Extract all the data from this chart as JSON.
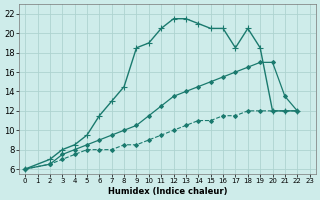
{
  "xlabel": "Humidex (Indice chaleur)",
  "bg_color": "#ceecea",
  "grid_color": "#aed4d0",
  "line_color": "#1a7a6e",
  "xlim": [
    -0.5,
    23.5
  ],
  "ylim": [
    5.5,
    23.0
  ],
  "yticks": [
    6,
    8,
    10,
    12,
    14,
    16,
    18,
    20,
    22
  ],
  "xticks": [
    0,
    1,
    2,
    3,
    4,
    5,
    6,
    7,
    8,
    9,
    10,
    11,
    12,
    13,
    14,
    15,
    16,
    17,
    18,
    19,
    20,
    21,
    22,
    23
  ],
  "series": [
    {
      "x": [
        0,
        2,
        3,
        4,
        5,
        6,
        7,
        8,
        9,
        10,
        11,
        12,
        13,
        14,
        15,
        16,
        17,
        18,
        19,
        20,
        21,
        22
      ],
      "y": [
        6,
        6.5,
        7.0,
        7.5,
        8.0,
        8.0,
        8.0,
        8.5,
        8.5,
        9.0,
        9.5,
        10.0,
        10.5,
        11.0,
        11.0,
        11.5,
        11.5,
        12.0,
        12.0,
        12.0,
        12.0,
        12.0
      ],
      "style": "--",
      "marker": "D",
      "markersize": 2.0,
      "linewidth": 0.8
    },
    {
      "x": [
        0,
        2,
        3,
        4,
        5,
        6,
        7,
        8,
        9,
        10,
        11,
        12,
        13,
        14,
        15,
        16,
        17,
        18,
        19,
        20,
        21,
        22
      ],
      "y": [
        6,
        6.5,
        7.5,
        8.0,
        8.5,
        9.0,
        9.5,
        10.0,
        10.5,
        11.5,
        12.5,
        13.5,
        14.0,
        14.5,
        15.0,
        15.5,
        16.0,
        16.5,
        17.0,
        17.0,
        13.5,
        12.0
      ],
      "style": "-",
      "marker": "D",
      "markersize": 2.0,
      "linewidth": 0.9
    },
    {
      "x": [
        0,
        2,
        3,
        4,
        5,
        6,
        7,
        8,
        9,
        10,
        11,
        12,
        13,
        14,
        15,
        16,
        17,
        18,
        19,
        20,
        21,
        22
      ],
      "y": [
        6,
        7.0,
        8.0,
        8.5,
        9.5,
        11.5,
        13.0,
        14.5,
        18.5,
        19.0,
        20.5,
        21.5,
        21.5,
        21.0,
        20.5,
        20.5,
        18.5,
        20.5,
        18.5,
        12.0,
        12.0,
        12.0
      ],
      "style": "-",
      "marker": "+",
      "markersize": 4.0,
      "linewidth": 1.0
    }
  ]
}
